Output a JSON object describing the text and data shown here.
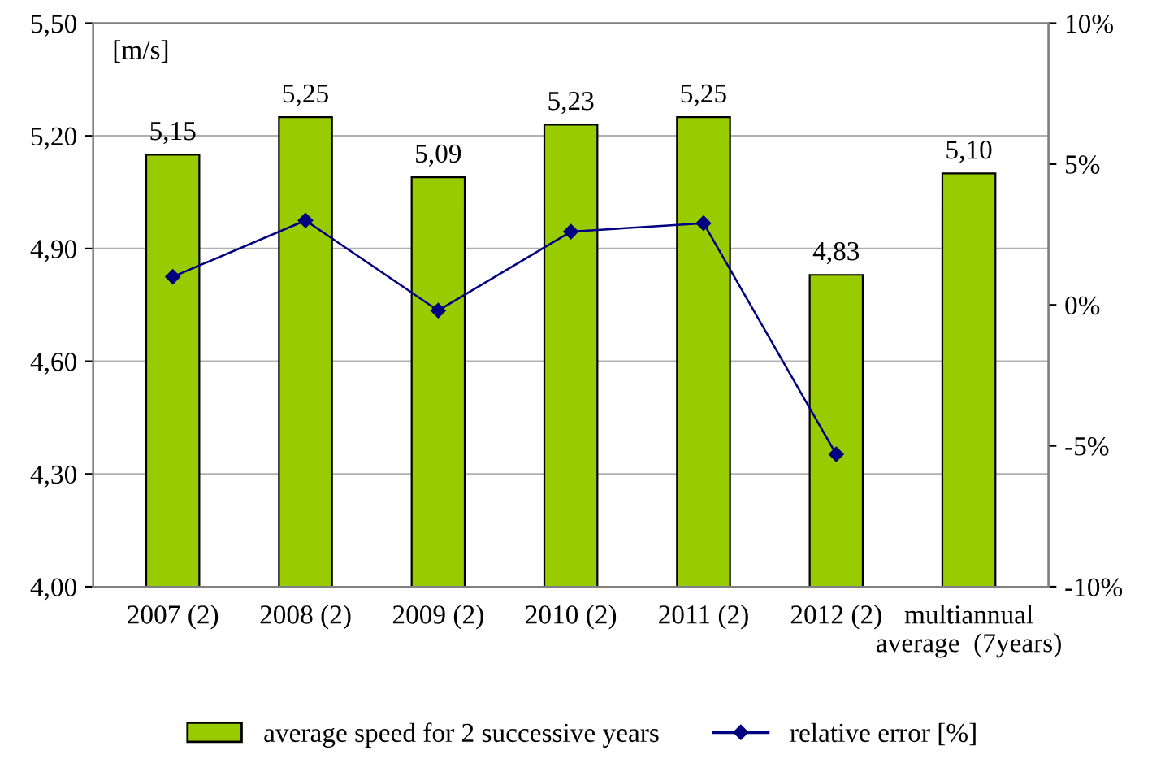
{
  "chart_data": {
    "type": "bar",
    "ylabel": "[m/s]",
    "categories": [
      "2007 (2)",
      "2008 (2)",
      "2009 (2)",
      "2010 (2)",
      "2011 (2)",
      "2012 (2)",
      "multiannual\naverage  (7years)"
    ],
    "series": [
      {
        "name": "average speed for 2 successive years",
        "color": "#99cc00",
        "values": [
          5.15,
          5.25,
          5.09,
          5.23,
          5.25,
          4.83,
          5.1
        ],
        "value_labels": [
          "5,15",
          "5,25",
          "5,09",
          "5,23",
          "5,25",
          "4,83",
          "5,10"
        ]
      },
      {
        "name": "relative error [%]",
        "type": "line",
        "axis": "y2",
        "color": "#000080",
        "marker": "diamond",
        "values": [
          1.0,
          3.0,
          -0.2,
          2.6,
          2.9,
          -5.3,
          null
        ]
      }
    ],
    "ylim": [
      4.0,
      5.5
    ],
    "yticks": [
      {
        "value": 4.0,
        "label": "4,00"
      },
      {
        "value": 4.3,
        "label": "4,30"
      },
      {
        "value": 4.6,
        "label": "4,60"
      },
      {
        "value": 4.9,
        "label": "4,90"
      },
      {
        "value": 5.2,
        "label": "5,20"
      },
      {
        "value": 5.5,
        "label": "5,50"
      }
    ],
    "y2lim": [
      -10,
      10
    ],
    "y2ticks": [
      {
        "value": -10,
        "label": "-10%"
      },
      {
        "value": -5,
        "label": "-5%"
      },
      {
        "value": 0,
        "label": "0%"
      },
      {
        "value": 5,
        "label": "5%"
      },
      {
        "value": 10,
        "label": "10%"
      }
    ],
    "grid": "y",
    "legend": "bottom"
  }
}
